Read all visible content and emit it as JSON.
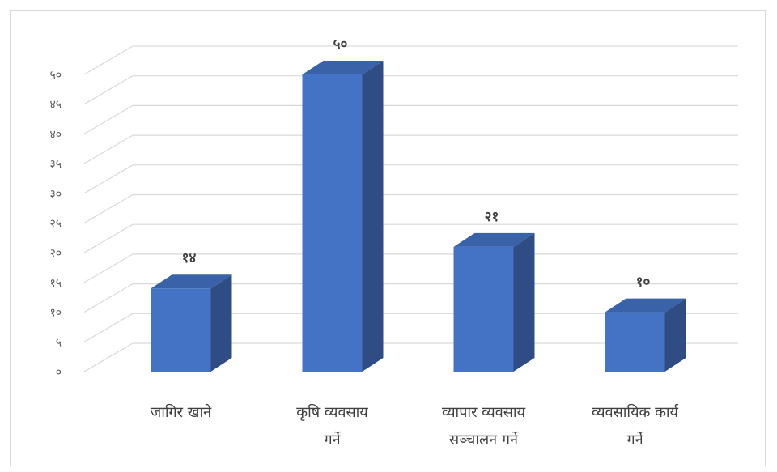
{
  "chart_data": {
    "type": "bar",
    "style": "3d-column",
    "categories": [
      [
        "जागिर खाने"
      ],
      [
        "कृषि व्यवसाय",
        "गर्ने"
      ],
      [
        "व्यापार व्यवसाय",
        "सञ्चालन गर्ने"
      ],
      [
        "व्यवसायिक कार्य",
        "गर्ने"
      ]
    ],
    "values": [
      14,
      50,
      21,
      10
    ],
    "value_labels": [
      "१४",
      "५०",
      "२१",
      "१०"
    ],
    "ylim": [
      0,
      50
    ],
    "yticks": [
      "०",
      "५",
      "१०",
      "१५",
      "२०",
      "२५",
      "३०",
      "३५",
      "४०",
      "४५",
      "५०"
    ],
    "grid": true,
    "title": "",
    "xlabel": "",
    "ylabel": "",
    "colors": {
      "bar_front": "#4472c4",
      "bar_side": "#2f4d84",
      "bar_top": "#3a62a8",
      "grid": "#d9d9d9",
      "frame": "#d9d9d9"
    }
  }
}
